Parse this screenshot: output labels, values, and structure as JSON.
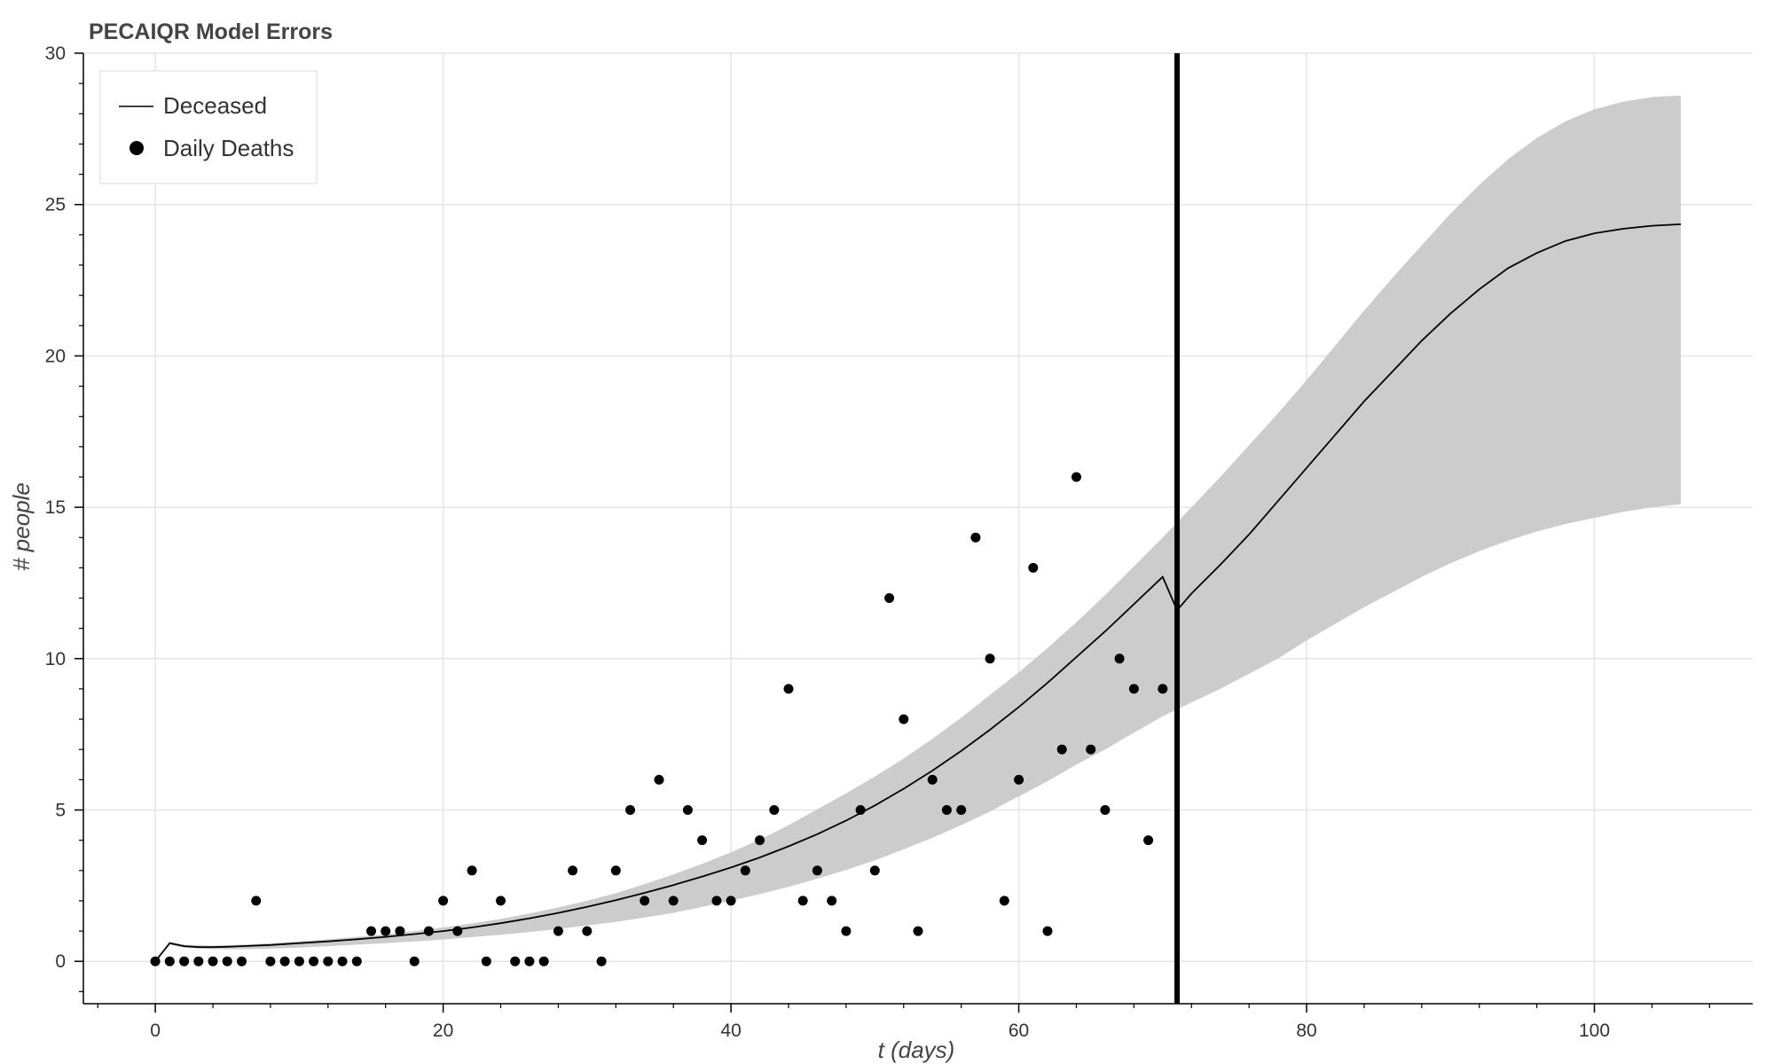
{
  "chart_data": {
    "type": "line",
    "title": "PECAIQR Model Errors",
    "xlabel": "t (days)",
    "ylabel": "# people",
    "xlim": [
      -5,
      111
    ],
    "ylim": [
      -1.4,
      30
    ],
    "x_ticks": [
      0,
      20,
      40,
      60,
      80,
      100
    ],
    "y_ticks": [
      0,
      5,
      10,
      15,
      20,
      25,
      30
    ],
    "grid": true,
    "legend": {
      "placement": "top-left",
      "entries": [
        {
          "label": "Deceased",
          "marker": "line"
        },
        {
          "label": "Daily Deaths",
          "marker": "circle"
        }
      ]
    },
    "vertical_line": {
      "x": 71
    },
    "series": [
      {
        "name": "Deceased",
        "kind": "line",
        "color": "#000000",
        "x": [
          0,
          1,
          2,
          3,
          4,
          5,
          6,
          8,
          10,
          12,
          14,
          16,
          18,
          20,
          22,
          24,
          26,
          28,
          30,
          32,
          34,
          36,
          38,
          40,
          42,
          44,
          46,
          48,
          50,
          52,
          54,
          56,
          58,
          60,
          62,
          64,
          66,
          68,
          70,
          71,
          72,
          74,
          76,
          78,
          80,
          82,
          84,
          86,
          88,
          90,
          92,
          94,
          96,
          98,
          100,
          102,
          104,
          106
        ],
        "y": [
          0,
          0.6,
          0.5,
          0.47,
          0.47,
          0.48,
          0.5,
          0.54,
          0.6,
          0.66,
          0.73,
          0.81,
          0.9,
          1.0,
          1.12,
          1.26,
          1.42,
          1.6,
          1.8,
          2.02,
          2.26,
          2.52,
          2.8,
          3.1,
          3.43,
          3.8,
          4.2,
          4.65,
          5.15,
          5.7,
          6.3,
          6.95,
          7.65,
          8.4,
          9.2,
          10.05,
          10.9,
          11.8,
          12.7,
          11.6,
          12.15,
          13.1,
          14.1,
          15.2,
          16.3,
          17.4,
          18.5,
          19.5,
          20.5,
          21.4,
          22.2,
          22.9,
          23.4,
          23.8,
          24.05,
          24.2,
          24.3,
          24.35
        ]
      },
      {
        "name": "error band",
        "kind": "band",
        "color": "#cccccc",
        "x": [
          0,
          1,
          2,
          4,
          6,
          8,
          10,
          12,
          14,
          16,
          18,
          20,
          22,
          24,
          26,
          28,
          30,
          32,
          34,
          36,
          38,
          40,
          42,
          44,
          46,
          48,
          50,
          52,
          54,
          56,
          58,
          60,
          62,
          64,
          66,
          68,
          70,
          72,
          74,
          76,
          78,
          80,
          82,
          84,
          86,
          88,
          90,
          92,
          94,
          96,
          98,
          100,
          102,
          104,
          106
        ],
        "lower": [
          0,
          0.55,
          0.45,
          0.4,
          0.4,
          0.42,
          0.45,
          0.5,
          0.55,
          0.6,
          0.66,
          0.72,
          0.8,
          0.88,
          0.97,
          1.07,
          1.18,
          1.3,
          1.45,
          1.6,
          1.8,
          2.0,
          2.22,
          2.46,
          2.73,
          3.02,
          3.34,
          3.7,
          4.08,
          4.5,
          4.95,
          5.45,
          5.95,
          6.5,
          7.0,
          7.55,
          8.1,
          8.55,
          9.0,
          9.5,
          10.0,
          10.6,
          11.15,
          11.7,
          12.2,
          12.7,
          13.15,
          13.55,
          13.9,
          14.2,
          14.45,
          14.65,
          14.85,
          15.0,
          15.1
        ],
        "upper": [
          0,
          0.65,
          0.55,
          0.52,
          0.55,
          0.6,
          0.66,
          0.73,
          0.81,
          0.9,
          1.0,
          1.12,
          1.25,
          1.4,
          1.58,
          1.78,
          2.0,
          2.25,
          2.55,
          2.87,
          3.22,
          3.6,
          4.02,
          4.5,
          5.02,
          5.55,
          6.1,
          6.7,
          7.35,
          8.05,
          8.8,
          9.55,
          10.35,
          11.2,
          12.1,
          13.05,
          14.0,
          15.0,
          16.0,
          17.05,
          18.1,
          19.2,
          20.35,
          21.5,
          22.6,
          23.65,
          24.7,
          25.65,
          26.5,
          27.2,
          27.75,
          28.15,
          28.4,
          28.55,
          28.6
        ]
      },
      {
        "name": "Daily Deaths",
        "kind": "scatter",
        "color": "#000000",
        "x": [
          0,
          1,
          2,
          3,
          4,
          5,
          6,
          7,
          8,
          9,
          10,
          11,
          12,
          13,
          14,
          15,
          16,
          17,
          18,
          19,
          20,
          21,
          22,
          23,
          24,
          25,
          26,
          27,
          28,
          29,
          30,
          31,
          32,
          33,
          34,
          35,
          36,
          37,
          38,
          39,
          40,
          41,
          42,
          43,
          44,
          45,
          46,
          47,
          48,
          49,
          50,
          51,
          52,
          53,
          54,
          55,
          56,
          57,
          58,
          59,
          60,
          61,
          62,
          63,
          64,
          65,
          66,
          67,
          68,
          69,
          70
        ],
        "y": [
          0,
          0,
          0,
          0,
          0,
          0,
          0,
          2,
          0,
          0,
          0,
          0,
          0,
          0,
          0,
          1,
          1,
          1,
          0,
          1,
          2,
          1,
          3,
          0,
          2,
          0,
          0,
          0,
          1,
          3,
          1,
          0,
          3,
          5,
          2,
          6,
          2,
          5,
          4,
          2,
          2,
          3,
          4,
          5,
          9,
          2,
          3,
          2,
          1,
          5,
          3,
          12,
          8,
          1,
          6,
          5,
          5,
          14,
          10,
          2,
          6,
          13,
          1,
          7,
          16,
          7,
          5,
          10,
          9,
          4,
          9
        ]
      }
    ]
  }
}
